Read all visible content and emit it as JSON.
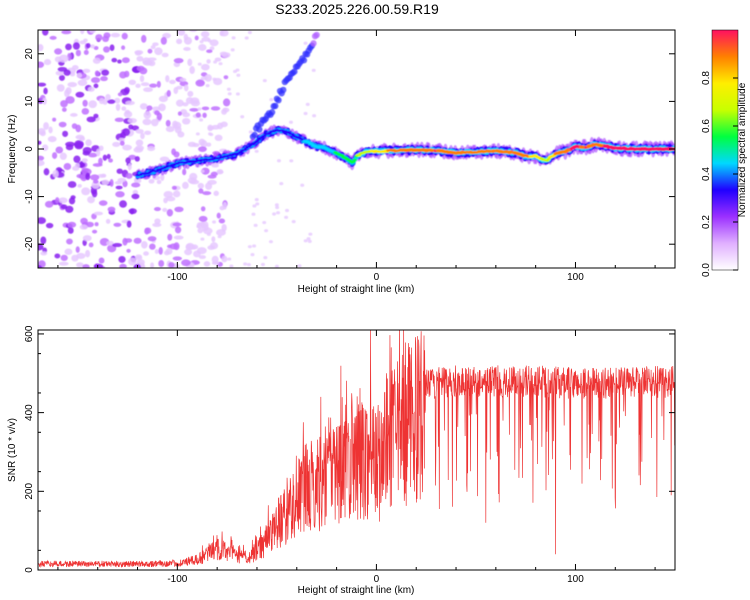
{
  "title": "S233.2025.226.00.59.R19",
  "chart_data": [
    {
      "type": "heatmap",
      "name": "spectrogram",
      "xlabel": "Height of straight line (km)",
      "ylabel": "Frequency (Hz)",
      "xlim": [
        -170,
        150
      ],
      "ylim": [
        -25,
        25
      ],
      "xticks": [
        -100,
        0,
        100
      ],
      "xtick_labels": [
        "-100",
        "0",
        "100"
      ],
      "yticks": [
        -20,
        -10,
        0,
        10,
        20
      ],
      "ytick_labels": [
        "-20",
        "-10",
        "0",
        "10",
        "20"
      ],
      "colorbar": {
        "label": "Normalized spectral amplitude",
        "range": [
          0,
          1
        ],
        "ticks": [
          0,
          0.2,
          0.4,
          0.6,
          0.8
        ],
        "tick_labels": [
          "0.0",
          "0.2",
          "0.4",
          "0.6",
          "0.8"
        ],
        "colors": [
          "#ffffff",
          "#e0b0ff",
          "#9b30ff",
          "#2000ff",
          "#00d8ff",
          "#00ff40",
          "#c8ff00",
          "#ffee00",
          "#ff8000",
          "#ff1060"
        ]
      },
      "ridge": {
        "x": [
          -120,
          -110,
          -100,
          -90,
          -80,
          -70,
          -62,
          -56,
          -50,
          -44,
          -40,
          -35,
          -30,
          -25,
          -20,
          -15,
          -12,
          -10,
          -5,
          0,
          10,
          20,
          30,
          40,
          50,
          60,
          70,
          75,
          80,
          85,
          90,
          95,
          100,
          105,
          110,
          120,
          130,
          140,
          150
        ],
        "y": [
          -5.5,
          -4.5,
          -3.0,
          -2.5,
          -2.0,
          -1.0,
          1.0,
          3.0,
          4.0,
          3.5,
          2.5,
          1.5,
          0.5,
          0.2,
          -1.0,
          -2.0,
          -3.0,
          -1.5,
          -0.5,
          -0.5,
          -0.3,
          -0.2,
          -0.3,
          -0.8,
          -0.6,
          -0.4,
          -0.8,
          -1.5,
          -1.5,
          -2.5,
          -1.0,
          -0.5,
          0.5,
          0.3,
          1.0,
          0.2,
          0.0,
          0.0,
          0.0
        ],
        "amplitude": [
          0.25,
          0.3,
          0.3,
          0.3,
          0.28,
          0.25,
          0.28,
          0.3,
          0.3,
          0.28,
          0.3,
          0.35,
          0.4,
          0.42,
          0.45,
          0.5,
          0.45,
          0.55,
          0.6,
          0.75,
          0.8,
          0.85,
          0.9,
          0.85,
          0.8,
          0.85,
          0.9,
          0.8,
          0.75,
          0.6,
          0.8,
          0.9,
          0.95,
          0.9,
          0.9,
          0.95,
          0.98,
          0.98,
          1.0
        ]
      },
      "branch": {
        "x": [
          -62,
          -56,
          -50,
          -45,
          -40,
          -35,
          -30
        ],
        "y": [
          3.0,
          6.0,
          10.0,
          14.5,
          17.0,
          20.0,
          24.0
        ]
      },
      "noise_region": {
        "x": [
          -170,
          -85
        ],
        "amplitude_max": 0.35
      }
    },
    {
      "type": "line",
      "name": "snr",
      "xlabel": "Height of straight line (km)",
      "ylabel": "SNR (10 * v/v)",
      "color": "#ee3333",
      "xlim": [
        -170,
        150
      ],
      "ylim": [
        0,
        610
      ],
      "xticks": [
        -100,
        0,
        100
      ],
      "xtick_labels": [
        "-100",
        "0",
        "100"
      ],
      "yticks": [
        0,
        200,
        400,
        600
      ],
      "ytick_labels": [
        "0",
        "200",
        "400",
        "600"
      ],
      "envelope": {
        "x": [
          -170,
          -120,
          -100,
          -90,
          -85,
          -80,
          -75,
          -70,
          -65,
          -60,
          -55,
          -50,
          -45,
          -40,
          -35,
          -30,
          -25,
          -20,
          -15,
          -10,
          -5,
          0,
          5,
          10,
          15,
          20,
          25,
          30,
          40,
          60,
          80,
          100,
          120,
          150
        ],
        "y": [
          18,
          18,
          20,
          30,
          50,
          65,
          60,
          45,
          40,
          60,
          100,
          140,
          180,
          230,
          260,
          270,
          310,
          320,
          340,
          350,
          360,
          330,
          390,
          420,
          460,
          480,
          500,
          505,
          510,
          510,
          510,
          505,
          505,
          510
        ]
      },
      "spikes": [
        {
          "x": -3,
          "y": 610
        },
        {
          "x": -28,
          "y": 440
        },
        {
          "x": 5,
          "y": 500
        },
        {
          "x": 55,
          "y": 120
        },
        {
          "x": 90,
          "y": 40
        },
        {
          "x": 148,
          "y": 190
        }
      ]
    }
  ]
}
